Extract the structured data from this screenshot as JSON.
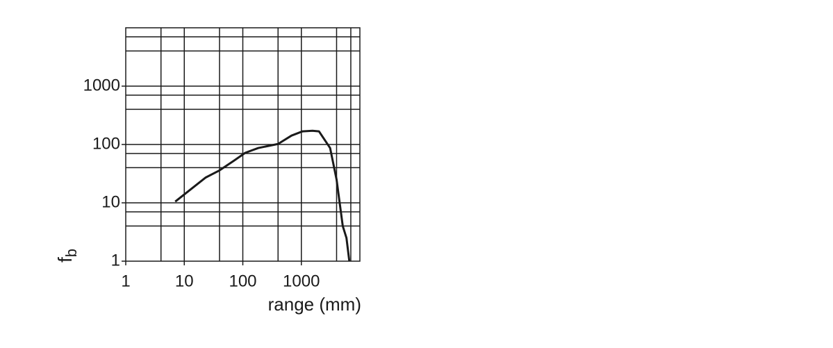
{
  "chart_data": {
    "type": "line",
    "xlabel": "range (mm)",
    "ylabel": {
      "text": "f",
      "subscript": "b"
    },
    "log_x": true,
    "log_y": true,
    "grid": true,
    "xlim": [
      1,
      10000
    ],
    "ylim": [
      1,
      10000
    ],
    "xticks": [
      1,
      10,
      100,
      1000
    ],
    "yticks": [
      1,
      10,
      100,
      1000
    ],
    "x_grid_lines": [
      4,
      10,
      40,
      100,
      400,
      1000,
      4000,
      7000
    ],
    "y_grid_lines": [
      4,
      7,
      10,
      40,
      70,
      100,
      400,
      700,
      1000,
      4000,
      7000
    ],
    "series": [
      {
        "color": "#1a1a1a",
        "x": [
          7,
          23,
          40,
          69,
          110,
          184,
          400,
          680,
          1050,
          1550,
          2000,
          3100,
          4000,
          5100,
          5900,
          6600
        ],
        "values": [
          10.5,
          27,
          36,
          52,
          72,
          87,
          102,
          142,
          168,
          172,
          168,
          87,
          25,
          4,
          2.5,
          1
        ]
      }
    ]
  }
}
